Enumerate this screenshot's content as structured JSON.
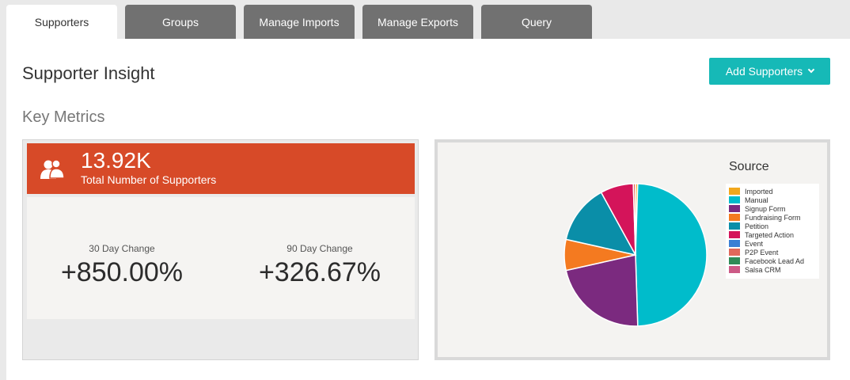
{
  "tabs": [
    {
      "label": "Supporters",
      "active": true
    },
    {
      "label": "Groups"
    },
    {
      "label": "Manage Imports"
    },
    {
      "label": "Manage Exports"
    },
    {
      "label": "Query"
    }
  ],
  "header": {
    "title": "Supporter Insight",
    "add_button": "Add Supporters"
  },
  "key_metrics": {
    "section_title": "Key Metrics",
    "total_value": "13.92K",
    "total_label": "Total Number of Supporters",
    "change_30_label": "30 Day Change",
    "change_30_value": "+850.00%",
    "change_90_label": "90 Day Change",
    "change_90_value": "+326.67%"
  },
  "colors": {
    "accent": "#16b9b7",
    "metric_header": "#d74a28",
    "tab_inactive": "#717171"
  },
  "chart_data": {
    "type": "pie",
    "title": "Source",
    "legend_position": "right",
    "slices": [
      {
        "label": "Imported",
        "value": 0.5,
        "color": "#f2a81d"
      },
      {
        "label": "Manual",
        "value": 49.0,
        "color": "#00bccb"
      },
      {
        "label": "Signup Form",
        "value": 22.0,
        "color": "#7b2a7f"
      },
      {
        "label": "Fundraising Form",
        "value": 7.0,
        "color": "#f47a20"
      },
      {
        "label": "Petition",
        "value": 13.5,
        "color": "#0a8ea8"
      },
      {
        "label": "Targeted Action",
        "value": 7.5,
        "color": "#d4145a"
      },
      {
        "label": "Event",
        "value": 0.0,
        "color": "#3b7fd4"
      },
      {
        "label": "P2P Event",
        "value": 0.5,
        "color": "#e0685b"
      },
      {
        "label": "Facebook Lead Ad",
        "value": 0.0,
        "color": "#2e8b57"
      },
      {
        "label": "Salsa CRM",
        "value": 0.0,
        "color": "#cc5a86"
      }
    ]
  }
}
